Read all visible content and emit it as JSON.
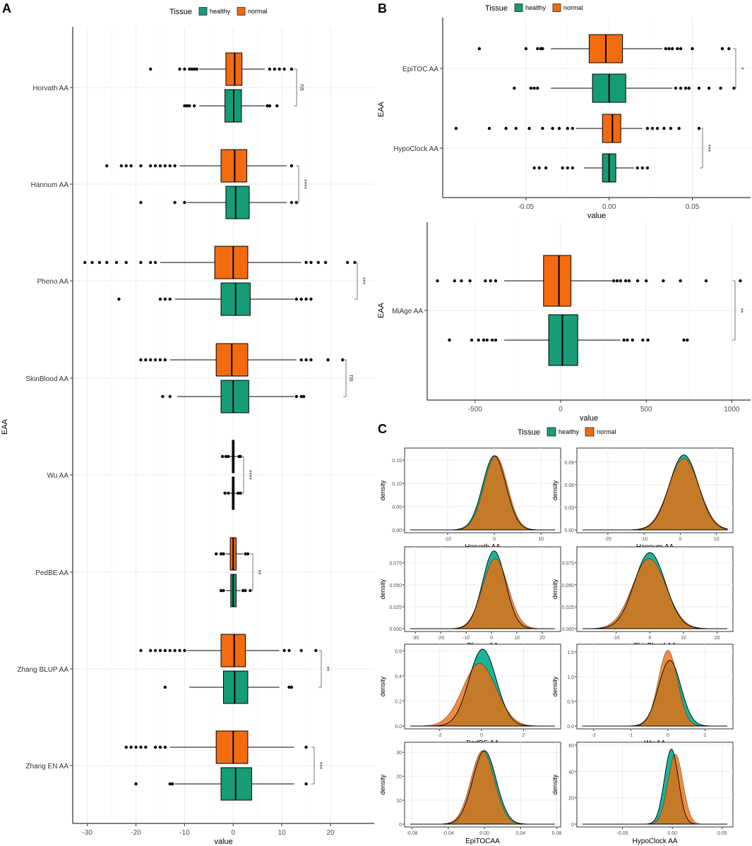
{
  "figure": {
    "panel_labels": [
      "A",
      "B",
      "C"
    ],
    "legend": {
      "title": "Tissue",
      "entries": [
        "healthy",
        "normal"
      ]
    }
  },
  "colors": {
    "healthy": "#169c77",
    "normal": "#f26b0f",
    "healthy_density": "#1ab49b",
    "normal_density": "#f28a43",
    "overlap_density": "#c57a28"
  },
  "chart_data": [
    {
      "panel": "A",
      "type": "boxplot",
      "orientation": "horizontal",
      "xlabel": "value",
      "ylabel": "EAA",
      "xlim": [
        -33,
        29
      ],
      "xticks": [
        -30,
        -20,
        -10,
        0,
        10,
        20
      ],
      "tick_labels": [
        "-30",
        "-20",
        "-10",
        "0",
        "10",
        "20"
      ],
      "groups": [
        {
          "label": "Horvath AA",
          "sig": "ns",
          "normal": {
            "q1": -1.5,
            "median": 0.3,
            "q3": 1.8,
            "whisker_low": -7,
            "whisker_high": 6.5,
            "outliers": [
              -17,
              -11,
              -10,
              -9,
              -8.5,
              -8,
              -7.5,
              7.5,
              8.5,
              9.5,
              10.5,
              12
            ]
          },
          "healthy": {
            "q1": -1.7,
            "median": 0.1,
            "q3": 1.7,
            "whisker_low": -7,
            "whisker_high": 6.5,
            "outliers": [
              -10,
              -9.5,
              -9,
              -8,
              7,
              7.5,
              9
            ]
          }
        },
        {
          "label": "Hannum AA",
          "sig": "****",
          "normal": {
            "q1": -2.5,
            "median": 0.3,
            "q3": 2.8,
            "whisker_low": -11,
            "whisker_high": 11,
            "outliers": [
              -26,
              -23,
              -22,
              -21,
              -19,
              -17,
              -16,
              -15,
              -14,
              -13,
              -12,
              12
            ]
          },
          "healthy": {
            "q1": -1.5,
            "median": 0.5,
            "q3": 3.3,
            "whisker_low": -9.5,
            "whisker_high": 11,
            "outliers": [
              -19,
              -12,
              -10,
              12,
              13
            ]
          }
        },
        {
          "label": "Pheno AA",
          "sig": "***",
          "normal": {
            "q1": -3.8,
            "median": 0,
            "q3": 3,
            "whisker_low": -15,
            "whisker_high": 14,
            "outliers": [
              -30.5,
              -29,
              -27.5,
              -26,
              -24,
              -22,
              -19,
              -17,
              -16,
              15,
              16,
              17.5,
              19,
              23.5,
              25
            ]
          },
          "healthy": {
            "q1": -2.5,
            "median": 0.5,
            "q3": 3.5,
            "whisker_low": -12,
            "whisker_high": 12.5,
            "outliers": [
              -23.5,
              -15,
              -14,
              -13,
              13,
              14,
              15,
              16
            ]
          }
        },
        {
          "label": "SkinBlood AA",
          "sig": "ns",
          "normal": {
            "q1": -3.5,
            "median": -0.3,
            "q3": 3,
            "whisker_low": -13,
            "whisker_high": 13,
            "outliers": [
              -19,
              -18,
              -17,
              -16,
              -15,
              -14,
              14,
              15,
              16,
              19.5,
              22.5
            ]
          },
          "healthy": {
            "q1": -2.5,
            "median": 0,
            "q3": 3.2,
            "whisker_low": -11.5,
            "whisker_high": 12.5,
            "outliers": [
              -14.5,
              -13,
              13,
              14,
              14.5
            ]
          }
        },
        {
          "label": "Wu AA",
          "sig": "****",
          "normal": {
            "q1": -0.2,
            "median": 0,
            "q3": 0.2,
            "whisker_low": -0.8,
            "whisker_high": 0.8,
            "outliers": [
              -2.2,
              -1.5,
              -1,
              1.2,
              1.5
            ]
          },
          "healthy": {
            "q1": -0.2,
            "median": 0,
            "q3": 0.2,
            "whisker_low": -0.7,
            "whisker_high": 0.7,
            "outliers": [
              -1.7,
              -1,
              1,
              1.5
            ]
          }
        },
        {
          "label": "PedBE AA",
          "sig": "**",
          "normal": {
            "q1": -0.6,
            "median": 0,
            "q3": 0.6,
            "whisker_low": -1.5,
            "whisker_high": 2,
            "outliers": [
              -3.5,
              -2.5,
              -2,
              2.5,
              3
            ]
          },
          "healthy": {
            "q1": -0.5,
            "median": 0,
            "q3": 0.6,
            "whisker_low": -1.5,
            "whisker_high": 1.5,
            "outliers": [
              -2.5,
              -2,
              2,
              2.5,
              3.5
            ]
          }
        },
        {
          "label": "Zhang BLUP AA",
          "sig": "**",
          "normal": {
            "q1": -2.5,
            "median": 0.2,
            "q3": 2.5,
            "whisker_low": -9.5,
            "whisker_high": 9.5,
            "outliers": [
              -19,
              -17,
              -16,
              -15,
              -14,
              -13,
              -12,
              -11,
              -10,
              10.5,
              11.5,
              14,
              17
            ]
          },
          "healthy": {
            "q1": -2,
            "median": 0.3,
            "q3": 3,
            "whisker_low": -9,
            "whisker_high": 9.5,
            "outliers": [
              -14,
              11.5,
              12
            ]
          }
        },
        {
          "label": "Zhang EN AA",
          "sig": "***",
          "normal": {
            "q1": -3.5,
            "median": 0,
            "q3": 3,
            "whisker_low": -13,
            "whisker_high": 12.5,
            "outliers": [
              -22,
              -21,
              -20,
              -19,
              -18,
              -16,
              -15,
              -14,
              15
            ]
          },
          "healthy": {
            "q1": -2.5,
            "median": 0.5,
            "q3": 3.8,
            "whisker_low": -12,
            "whisker_high": 12.5,
            "outliers": [
              -20,
              -13,
              -12.5,
              15
            ]
          }
        }
      ]
    },
    {
      "panel": "B-top",
      "type": "boxplot",
      "orientation": "horizontal",
      "xlabel": "value",
      "ylabel": "EAA",
      "xlim": [
        -0.1,
        0.085
      ],
      "xticks": [
        -0.05,
        0,
        0.05
      ],
      "tick_labels": [
        "-0.05",
        "0.00",
        "0.05"
      ],
      "groups": [
        {
          "label": "EpiTOC AA",
          "sig": "*",
          "normal": {
            "q1": -0.012,
            "median": -0.002,
            "q3": 0.008,
            "whisker_low": -0.035,
            "whisker_high": 0.032,
            "outliers": [
              -0.078,
              -0.05,
              -0.043,
              -0.041,
              -0.04,
              0.034,
              0.036,
              0.038,
              0.041,
              0.043,
              0.05,
              0.068,
              0.072
            ]
          },
          "healthy": {
            "q1": -0.01,
            "median": 0,
            "q3": 0.01,
            "whisker_low": -0.035,
            "whisker_high": 0.038,
            "outliers": [
              -0.057,
              -0.047,
              -0.045,
              -0.043,
              0.04,
              0.043,
              0.046,
              0.048,
              0.054,
              0.06,
              0.067,
              0.075
            ]
          }
        },
        {
          "label": "HypoClock AA",
          "sig": "***",
          "normal": {
            "q1": -0.004,
            "median": 0.002,
            "q3": 0.007,
            "whisker_low": -0.02,
            "whisker_high": 0.02,
            "outliers": [
              -0.092,
              -0.072,
              -0.062,
              -0.056,
              -0.048,
              -0.04,
              -0.034,
              -0.03,
              -0.025,
              -0.022,
              0.023,
              0.026,
              0.029,
              0.033,
              0.037,
              0.042,
              0.054
            ]
          },
          "healthy": {
            "q1": -0.004,
            "median": 0,
            "q3": 0.004,
            "whisker_low": -0.015,
            "whisker_high": 0.015,
            "outliers": [
              -0.045,
              -0.042,
              -0.038,
              -0.028,
              -0.025,
              -0.022,
              0.017,
              0.02,
              0.023
            ]
          }
        }
      ]
    },
    {
      "panel": "B-bottom",
      "type": "boxplot",
      "orientation": "horizontal",
      "xlabel": "value",
      "ylabel": "EAA",
      "xlim": [
        -780,
        1110
      ],
      "xticks": [
        -500,
        0,
        500,
        1000
      ],
      "tick_labels": [
        "-500",
        "0",
        "500",
        "1000"
      ],
      "groups": [
        {
          "label": "MiAge AA",
          "sig": "**",
          "normal": {
            "q1": -100,
            "median": -10,
            "q3": 60,
            "whisker_low": -330,
            "whisker_high": 300,
            "outliers": [
              -720,
              -620,
              -580,
              -530,
              -440,
              -410,
              -380,
              310,
              330,
              350,
              380,
              400,
              450,
              500,
              600,
              700,
              850,
              1050
            ]
          },
          "healthy": {
            "q1": -70,
            "median": 10,
            "q3": 100,
            "whisker_low": -330,
            "whisker_high": 350,
            "outliers": [
              -650,
              -520,
              -480,
              -450,
              -430,
              -400,
              -380,
              370,
              390,
              420,
              480,
              510,
              720,
              740
            ]
          }
        }
      ]
    },
    {
      "panel": "C",
      "type": "density",
      "ylabel": "density",
      "subplots": [
        {
          "xlabel": "Horvath AA",
          "xlim": [
            -18,
            13
          ],
          "xticks": [
            -10,
            0,
            10
          ],
          "tick_labels": [
            "-10",
            "0",
            "10"
          ],
          "ymax": 0.17,
          "yticks": [
            0,
            0.05,
            0.1,
            0.15
          ],
          "ytick_labels": [
            "0.00",
            "0.05",
            "0.10",
            "0.15"
          ],
          "healthy": {
            "mean": 0,
            "sd": 2.5
          },
          "normal": {
            "mean": 0.3,
            "sd": 2.5
          }
        },
        {
          "xlabel": "Hannum AA",
          "xlim": [
            -27,
            13
          ],
          "xticks": [
            -20,
            -10,
            0,
            10
          ],
          "tick_labels": [
            "-20",
            "-10",
            "0",
            "10"
          ],
          "ymax": 0.105,
          "yticks": [
            0,
            0.03,
            0.06,
            0.09
          ],
          "ytick_labels": [
            "0.00",
            "0.03",
            "0.06",
            "0.09"
          ],
          "healthy": {
            "mean": 1,
            "sd": 4
          },
          "normal": {
            "mean": 1,
            "sd": 4.2
          }
        },
        {
          "xlabel": "Pheno AA",
          "xlim": [
            -32,
            25
          ],
          "xticks": [
            -30,
            -20,
            -10,
            0,
            10,
            20
          ],
          "tick_labels": [
            "-30",
            "-20",
            "-10",
            "0",
            "10",
            "20"
          ],
          "ymax": 0.09,
          "yticks": [
            0,
            0.025,
            0.05,
            0.075
          ],
          "ytick_labels": [
            "0.000",
            "0.025",
            "0.050",
            "0.075"
          ],
          "healthy": {
            "mean": 1,
            "sd": 4.5
          },
          "normal": {
            "mean": 1.5,
            "sd": 5
          }
        },
        {
          "xlabel": "SkinBlood AA",
          "xlim": [
            -20,
            23
          ],
          "xticks": [
            -10,
            0,
            10,
            20
          ],
          "tick_labels": [
            "-10",
            "0",
            "10",
            "20"
          ],
          "ymax": 0.09,
          "yticks": [
            0,
            0.025,
            0.05,
            0.075
          ],
          "ytick_labels": [
            "0.000",
            "0.025",
            "0.050",
            "0.075"
          ],
          "healthy": {
            "mean": 0,
            "sd": 4.6
          },
          "normal": {
            "mean": -0.2,
            "sd": 5
          }
        },
        {
          "xlabel": "PedBE AA",
          "xlim": [
            -3.4,
            3.5
          ],
          "xticks": [
            -2,
            0,
            2
          ],
          "tick_labels": [
            "-2",
            "0",
            "2"
          ],
          "ymax": 0.63,
          "yticks": [
            0,
            0.2,
            0.4,
            0.6
          ],
          "ytick_labels": [
            "0.0",
            "0.2",
            "0.4",
            "0.6"
          ],
          "healthy": {
            "mean": 0.05,
            "sd": 0.65
          },
          "normal": {
            "mean": -0.1,
            "sd": 0.8
          }
        },
        {
          "xlabel": "Wu AA",
          "xlim": [
            -2.3,
            1.6
          ],
          "xticks": [
            -2,
            -1,
            0,
            1
          ],
          "tick_labels": [
            "-2",
            "-1",
            "0",
            "1"
          ],
          "ymax": 1.6,
          "yticks": [
            0,
            0.5,
            1.0,
            1.5
          ],
          "ytick_labels": [
            "0.0",
            "0.5",
            "1.0",
            "1.5"
          ],
          "healthy": {
            "mean": 0.05,
            "sd": 0.3
          },
          "normal": {
            "mean": 0,
            "sd": 0.26
          }
        },
        {
          "xlabel": "EpiTOCAA",
          "xlim": [
            -0.082,
            0.078
          ],
          "xticks": [
            -0.08,
            -0.04,
            0,
            0.04,
            0.08
          ],
          "tick_labels": [
            "-0.08",
            "-0.04",
            "0.00",
            "0.04",
            "0.08"
          ],
          "ymax": 33,
          "yticks": [
            0,
            10,
            20,
            30
          ],
          "ytick_labels": [
            "0",
            "10",
            "20",
            "30"
          ],
          "healthy": {
            "mean": 0,
            "sd": 0.013
          },
          "normal": {
            "mean": -0.002,
            "sd": 0.013
          }
        },
        {
          "xlabel": "HypoClock AA",
          "xlim": [
            -0.09,
            0.055
          ],
          "xticks": [
            -0.05,
            0,
            0.05
          ],
          "tick_labels": [
            "-0.05",
            "0.00",
            "0.05"
          ],
          "ymax": 60,
          "yticks": [
            0,
            20,
            40,
            60
          ],
          "ytick_labels": [
            "0",
            "20",
            "40",
            "60"
          ],
          "healthy": {
            "mean": -0.001,
            "sd": 0.007
          },
          "normal": {
            "mean": 0.003,
            "sd": 0.0075
          }
        }
      ]
    }
  ]
}
